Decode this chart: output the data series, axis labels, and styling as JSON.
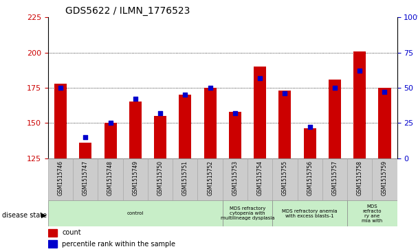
{
  "title": "GDS5622 / ILMN_1776523",
  "samples": [
    "GSM1515746",
    "GSM1515747",
    "GSM1515748",
    "GSM1515749",
    "GSM1515750",
    "GSM1515751",
    "GSM1515752",
    "GSM1515753",
    "GSM1515754",
    "GSM1515755",
    "GSM1515756",
    "GSM1515757",
    "GSM1515758",
    "GSM1515759"
  ],
  "counts": [
    178,
    136,
    150,
    165,
    155,
    170,
    175,
    158,
    190,
    173,
    146,
    181,
    201,
    175
  ],
  "percentiles": [
    50,
    15,
    25,
    42,
    32,
    45,
    50,
    32,
    57,
    46,
    22,
    50,
    62,
    47
  ],
  "ymin": 125,
  "ymax": 225,
  "yticks_left": [
    125,
    150,
    175,
    200,
    225
  ],
  "yticks_right": [
    0,
    25,
    50,
    75,
    100
  ],
  "bar_color": "#cc0000",
  "dot_color": "#0000cc",
  "plot_bg": "#ffffff",
  "tick_bg": "#cccccc",
  "disease_groups": [
    {
      "label": "control",
      "start": 0,
      "end": 7
    },
    {
      "label": "MDS refractory\ncytopenia with\nmultilineage dysplasia",
      "start": 7,
      "end": 9
    },
    {
      "label": "MDS refractory anemia\nwith excess blasts-1",
      "start": 9,
      "end": 12
    },
    {
      "label": "MDS\nrefracto\nry ane\nmia with",
      "start": 12,
      "end": 14
    }
  ],
  "group_color": "#c8eec8",
  "legend_items": [
    {
      "label": "count",
      "color": "#cc0000"
    },
    {
      "label": "percentile rank within the sample",
      "color": "#0000cc"
    }
  ]
}
